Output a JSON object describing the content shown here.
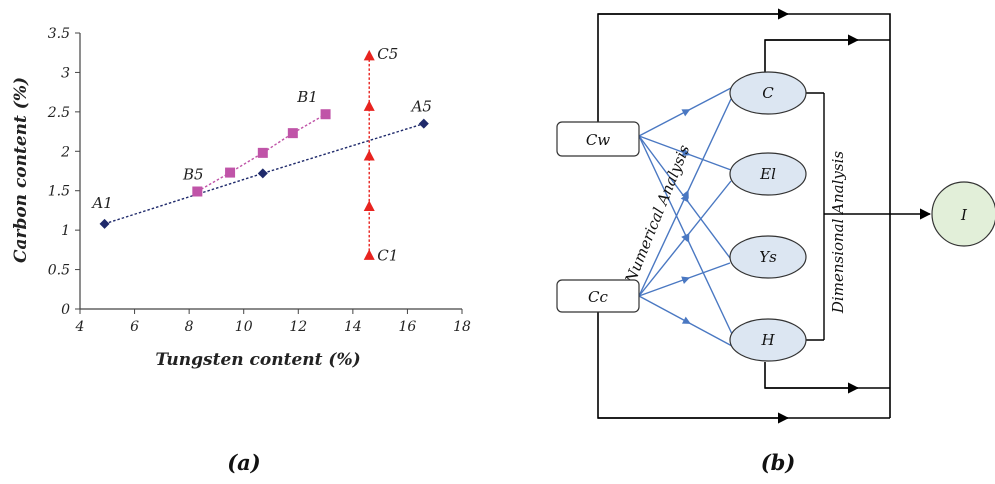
{
  "chart_data": {
    "type": "scatter",
    "title": "",
    "xlabel": "Tungsten content (%)",
    "ylabel": "Carbon content (%)",
    "xlim": [
      4,
      18
    ],
    "ylim": [
      0,
      3.5
    ],
    "xticks": [
      4,
      6,
      8,
      10,
      12,
      14,
      16,
      18
    ],
    "yticks": [
      0,
      0.5,
      1,
      1.5,
      2,
      2.5,
      3,
      3.5
    ],
    "xtick_labels": [
      "4",
      "6",
      "8",
      "10",
      "12",
      "14",
      "16",
      "18"
    ],
    "ytick_labels": [
      "0",
      "0.5",
      "1",
      "1.5",
      "2",
      "2.5",
      "3",
      "3.5"
    ],
    "grid": false,
    "series": [
      {
        "marker": "diamond",
        "color": "#1f2a6b",
        "linestyle": "dotted",
        "points": [
          {
            "x": 4.9,
            "y": 1.08
          },
          {
            "x": 10.7,
            "y": 1.72
          },
          {
            "x": 16.6,
            "y": 2.35
          }
        ],
        "annotations": [
          {
            "text": "A1",
            "x": 4.9,
            "y": 1.08
          },
          {
            "text": "A5",
            "x": 16.6,
            "y": 2.35
          }
        ]
      },
      {
        "marker": "square",
        "color": "#c054a8",
        "linestyle": "dotted",
        "points": [
          {
            "x": 8.3,
            "y": 1.49
          },
          {
            "x": 9.5,
            "y": 1.73
          },
          {
            "x": 10.7,
            "y": 1.98
          },
          {
            "x": 11.8,
            "y": 2.23
          },
          {
            "x": 13.0,
            "y": 2.47
          }
        ],
        "annotations": [
          {
            "text": "B5",
            "x": 8.3,
            "y": 1.49
          },
          {
            "text": "B1",
            "x": 13.0,
            "y": 2.47
          }
        ]
      },
      {
        "marker": "triangle",
        "color": "#e8231f",
        "linestyle": "dotted",
        "points": [
          {
            "x": 14.6,
            "y": 0.68
          },
          {
            "x": 14.6,
            "y": 1.3
          },
          {
            "x": 14.6,
            "y": 1.94
          },
          {
            "x": 14.6,
            "y": 2.57
          },
          {
            "x": 14.6,
            "y": 3.21
          }
        ],
        "annotations": [
          {
            "text": "C1",
            "x": 14.6,
            "y": 0.68
          },
          {
            "text": "C5",
            "x": 14.6,
            "y": 3.21
          }
        ]
      }
    ]
  },
  "panel_a": {
    "label": "(a)"
  },
  "panel_b": {
    "label": "(b)",
    "inputs": [
      {
        "id": "cw",
        "label": "Cw"
      },
      {
        "id": "cc",
        "label": "Cc"
      }
    ],
    "properties": [
      {
        "id": "c",
        "label": "C"
      },
      {
        "id": "el",
        "label": "El"
      },
      {
        "id": "ys",
        "label": "Ys"
      },
      {
        "id": "h",
        "label": "H"
      }
    ],
    "output": {
      "id": "i",
      "label": "I"
    },
    "numerical_label": "Numerical Analysis",
    "dimensional_label": "Dimensional Analysis",
    "colors": {
      "node_fill": "#dce6f2",
      "output_fill": "#e2efd9",
      "blue_arrow": "#4a78c2",
      "black": "#000000"
    }
  }
}
